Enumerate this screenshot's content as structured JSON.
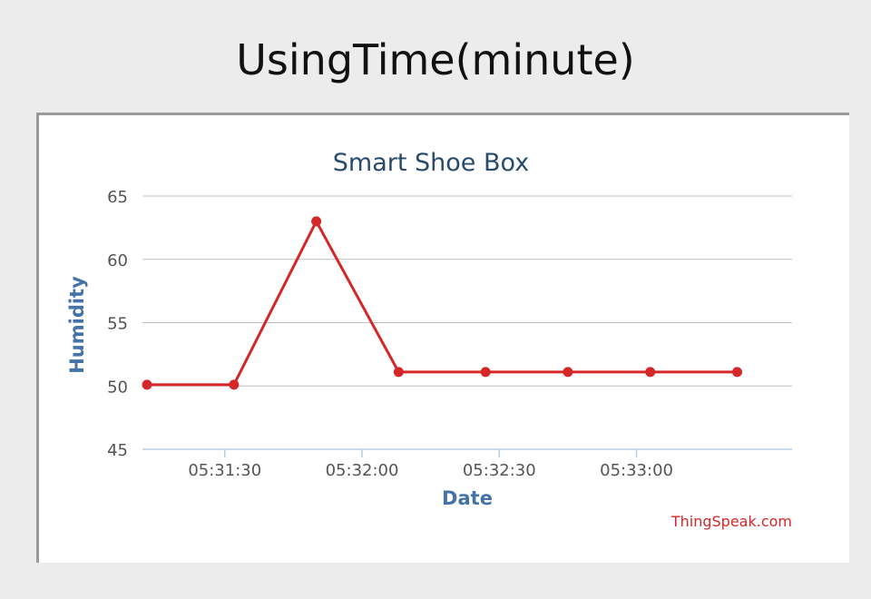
{
  "page": {
    "title": "UsingTime(minute)"
  },
  "chart_data": {
    "type": "line",
    "title": "Smart Shoe Box",
    "xlabel": "Date",
    "ylabel": "Humidity",
    "credit": "ThingSpeak.com",
    "xlim": [
      "05:31:12",
      "05:33:34"
    ],
    "ylim": [
      45,
      65
    ],
    "x_ticks": [
      "05:31:30",
      "05:32:00",
      "05:32:30",
      "05:33:00"
    ],
    "y_ticks": [
      45,
      50,
      55,
      60,
      65
    ],
    "grid": true,
    "legend": false,
    "series": [
      {
        "color": "#d62728",
        "x": [
          "05:31:13",
          "05:31:32",
          "05:31:50",
          "05:32:08",
          "05:32:27",
          "05:32:45",
          "05:33:03",
          "05:33:22"
        ],
        "y": [
          50.1,
          50.1,
          63,
          51.1,
          51.1,
          51.1,
          51.1,
          51.1
        ]
      }
    ],
    "colors": {
      "title": "#274b6d",
      "axis_label": "#4572a7",
      "tick_label": "#555555",
      "grid": "#c0c0c0",
      "x_axis_line": "#b8cde2",
      "credit": "#d62728"
    }
  }
}
